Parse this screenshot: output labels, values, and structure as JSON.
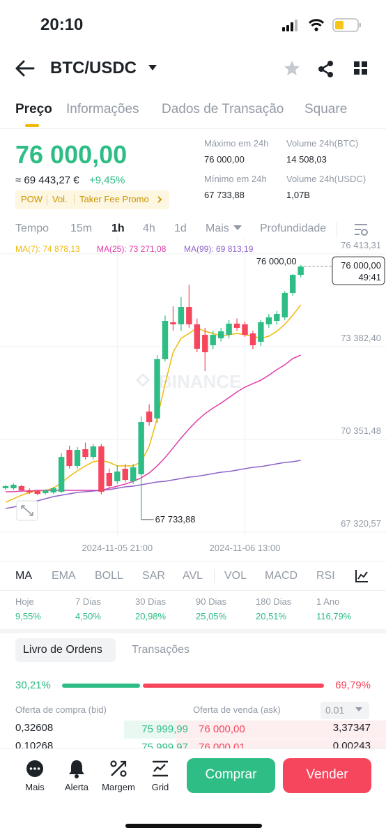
{
  "status_bar": {
    "time": "20:10"
  },
  "header": {
    "pair": "BTC/USDC"
  },
  "tabs": [
    "Preço",
    "Informações",
    "Dados de Transação",
    "Square"
  ],
  "ticker": {
    "price": "76 000,00",
    "fiat": "≈ 69 443,27 €",
    "change": "+9,45%",
    "tags": [
      "POW",
      "Vol.",
      "Taker Fee Promo"
    ]
  },
  "stats": [
    {
      "label": "Máximo em 24h",
      "value": "76 000,00"
    },
    {
      "label": "Volume 24h(BTC)",
      "value": "14 508,03"
    },
    {
      "label": "Mínimo em 24h",
      "value": "67 733,88"
    },
    {
      "label": "Volume 24h(USDC)",
      "value": "1,07B"
    }
  ],
  "intervals": [
    "Tempo",
    "15m",
    "1h",
    "4h",
    "1d",
    "Mais",
    "Profundidade"
  ],
  "chart_data": {
    "type": "candlestick",
    "watermark": "BINANCE",
    "candles": [
      [
        68756,
        68870,
        68700,
        68824
      ],
      [
        68756,
        68915,
        68700,
        68870
      ],
      [
        68824,
        68870,
        68640,
        68687
      ],
      [
        68687,
        68750,
        68570,
        68619
      ],
      [
        68664,
        68700,
        68530,
        68573
      ],
      [
        68596,
        68720,
        68550,
        68687
      ],
      [
        68619,
        68800,
        68570,
        68756
      ],
      [
        68642,
        69900,
        68600,
        69781
      ],
      [
        70009,
        70150,
        69400,
        69485
      ],
      [
        69485,
        70100,
        69400,
        70009
      ],
      [
        70032,
        70250,
        69700,
        69781
      ],
      [
        69781,
        70200,
        69700,
        70123
      ],
      [
        70123,
        70200,
        68560,
        68642
      ],
      [
        69257,
        69400,
        68750,
        68824
      ],
      [
        68983,
        69500,
        68900,
        69303
      ],
      [
        69394,
        69550,
        68950,
        69029
      ],
      [
        68983,
        69550,
        68900,
        69439
      ],
      [
        69211,
        71100,
        67733.88,
        70921
      ],
      [
        71262,
        71500,
        70800,
        70921
      ],
      [
        71035,
        73100,
        70900,
        72972
      ],
      [
        72972,
        74400,
        72900,
        74225
      ],
      [
        74180,
        74700,
        73900,
        74111
      ],
      [
        74111,
        75000,
        73900,
        74681
      ],
      [
        74681,
        75400,
        74000,
        74111
      ],
      [
        74111,
        74300,
        73200,
        73314
      ],
      [
        73769,
        74000,
        72584,
        73200
      ],
      [
        73428,
        73900,
        73300,
        73769
      ],
      [
        73655,
        74000,
        73550,
        73883
      ],
      [
        73769,
        74250,
        73650,
        74134
      ],
      [
        74134,
        74300,
        73900,
        73997
      ],
      [
        74111,
        74200,
        73700,
        73769
      ],
      [
        73815,
        73900,
        73300,
        73428
      ],
      [
        73541,
        74250,
        73400,
        74180
      ],
      [
        74111,
        74450,
        74000,
        74339
      ],
      [
        74225,
        74550,
        74100,
        74453
      ],
      [
        74339,
        75200,
        74250,
        75137
      ],
      [
        75137,
        75750,
        75050,
        75729
      ],
      [
        75729,
        76050,
        75650,
        76000
      ]
    ],
    "series": [
      {
        "name": "MA(7): 74 878,13",
        "color": "#f0b90b",
        "values": [
          68300,
          68414,
          68528,
          68619,
          68664,
          68687,
          68756,
          68938,
          69143,
          69325,
          69485,
          69622,
          69667,
          69599,
          69485,
          69485,
          69485,
          69622,
          70123,
          71035,
          72174,
          73200,
          73655,
          73815,
          73997,
          73883,
          73815,
          73724,
          73769,
          73815,
          73769,
          73724,
          73655,
          73724,
          73883,
          74111,
          74407,
          74749
        ]
      },
      {
        "name": "MA(25): 73 271,08",
        "color": "#e03ca8",
        "values": [
          68642,
          68642,
          68664,
          68664,
          68687,
          68687,
          68687,
          68687,
          68687,
          68687,
          68687,
          68687,
          68687,
          68756,
          68824,
          68892,
          68983,
          69097,
          69257,
          69485,
          69758,
          70077,
          70396,
          70693,
          70966,
          71194,
          71376,
          71536,
          71718,
          71901,
          72060,
          72174,
          72288,
          72448,
          72630,
          72789,
          72994,
          73108
        ]
      },
      {
        "name": "MA(99): 69 813,19",
        "color": "#8e62c9",
        "values": [
          68095,
          68140,
          68209,
          68277,
          68345,
          68414,
          68482,
          68528,
          68573,
          68619,
          68642,
          68664,
          68687,
          68710,
          68756,
          68801,
          68824,
          68870,
          68915,
          68961,
          68983,
          69029,
          69075,
          69120,
          69143,
          69189,
          69234,
          69280,
          69303,
          69348,
          69394,
          69439,
          69462,
          69508,
          69553,
          69599,
          69622,
          69667
        ]
      }
    ],
    "ylim": [
      67320.57,
      76413.31
    ],
    "yticks": [
      {
        "value": 76413.31,
        "label": "76 413,31"
      },
      {
        "value": 73382.4,
        "label": "73 382,40"
      },
      {
        "value": 70351.48,
        "label": "70 351,48"
      },
      {
        "value": 67320.57,
        "label": "67 320,57"
      }
    ],
    "xticks": [
      {
        "value": 14,
        "label": "2024-11-05 21:00"
      },
      {
        "value": 30,
        "label": "2024-11-06 13:00"
      }
    ],
    "low_marker": {
      "value": 67733.88,
      "label": "67 733,88"
    },
    "last_price": {
      "value": 76000,
      "label": "76 000,00"
    },
    "countdown": "49:41",
    "colors": {
      "up": "#2ebd85",
      "down": "#f6465d"
    },
    "grid": true
  },
  "indicators": [
    "MA",
    "EMA",
    "BOLL",
    "SAR",
    "AVL",
    "VOL",
    "MACD",
    "RSI"
  ],
  "performance": [
    {
      "period": "Hoje",
      "change": "9,55%"
    },
    {
      "period": "7 Dias",
      "change": "4,50%"
    },
    {
      "period": "30 Dias",
      "change": "20,98%"
    },
    {
      "period": "90 Dias",
      "change": "25,05%"
    },
    {
      "period": "180 Dias",
      "change": "20,51%"
    },
    {
      "period": "1 Ano",
      "change": "116,79%"
    }
  ],
  "order_book": {
    "tabs": [
      "Livro de Ordens",
      "Transações"
    ],
    "buy_ratio": {
      "value": 30.21,
      "label": "30,21%"
    },
    "sell_ratio": {
      "value": 69.79,
      "label": "69,79%"
    },
    "bid_header": "Oferta de compra (bid)",
    "ask_header": "Oferta de venda (ask)",
    "precision": "0.01",
    "rows": [
      [
        "0,32608",
        "75 999,99",
        "76 000,00",
        "3,37347"
      ],
      [
        "0,10268",
        "75 999,97",
        "76 000,01",
        "0,00243"
      ]
    ]
  },
  "bottom_bar": {
    "items": [
      "Mais",
      "Alerta",
      "Margem",
      "Grid"
    ],
    "buy": "Comprar",
    "sell": "Vender"
  }
}
